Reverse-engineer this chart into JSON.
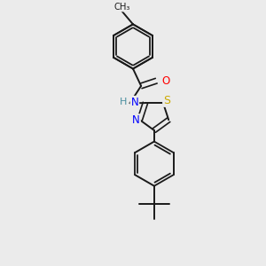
{
  "background_color": "#ebebeb",
  "bond_color": "#1a1a1a",
  "atom_colors": {
    "O": "#ff0000",
    "N": "#0000ff",
    "S": "#ccaa00",
    "H": "#4a8fa0",
    "C": "#1a1a1a"
  },
  "font_size_atoms": 8.5,
  "fig_width": 3.0,
  "fig_height": 3.0,
  "dpi": 100
}
